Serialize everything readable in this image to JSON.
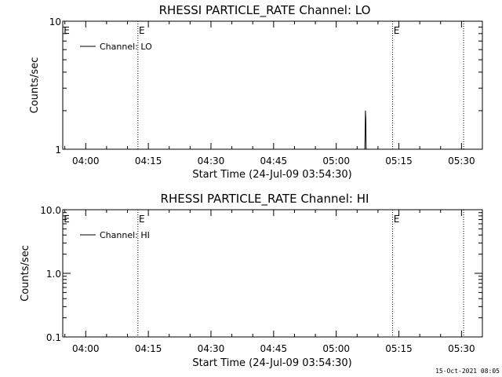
{
  "footer_date": "15-Oct-2021 08:05",
  "chart_data": [
    {
      "type": "line",
      "title": "RHESSI PARTICLE_RATE Channel: LO",
      "xlabel": "Start Time (24-Jul-09 03:54:30)",
      "ylabel": "Counts/sec",
      "yscale": "log",
      "ylim": [
        1,
        10
      ],
      "y_tick_labels": [
        "1",
        "10"
      ],
      "x_tick_labels": [
        "04:00",
        "04:15",
        "04:30",
        "04:45",
        "05:00",
        "05:15",
        "05:30"
      ],
      "xlim": [
        "03:54:30",
        "05:35:00"
      ],
      "grid": false,
      "legend": {
        "position": "top-left",
        "entries": [
          "Channel: LO"
        ]
      },
      "event_markers": [
        {
          "time": "04:12:30",
          "label": "E"
        },
        {
          "time": "05:13:30",
          "label": "E"
        },
        {
          "time": "05:30:30",
          "label": ""
        }
      ],
      "series": [
        {
          "name": "Channel: LO",
          "x": [
            "05:06:50",
            "05:06:55",
            "05:07:00",
            "05:07:05",
            "05:07:10",
            "05:07:15"
          ],
          "values": [
            1.0,
            1.35,
            2.0,
            1.7,
            1.0,
            1.0
          ]
        }
      ]
    },
    {
      "type": "line",
      "title": "RHESSI PARTICLE_RATE Channel: HI",
      "xlabel": "Start Time (24-Jul-09 03:54:30)",
      "ylabel": "Counts/sec",
      "yscale": "log",
      "ylim": [
        0.1,
        10
      ],
      "y_tick_labels": [
        "0.1",
        "1.0",
        "10.0"
      ],
      "x_tick_labels": [
        "04:00",
        "04:15",
        "04:30",
        "04:45",
        "05:00",
        "05:15",
        "05:30"
      ],
      "xlim": [
        "03:54:30",
        "05:35:00"
      ],
      "grid": false,
      "legend": {
        "position": "top-left",
        "entries": [
          "Channel: HI"
        ]
      },
      "event_markers": [
        {
          "time": "04:12:30",
          "label": "E"
        },
        {
          "time": "05:13:30",
          "label": "E"
        },
        {
          "time": "05:30:30",
          "label": ""
        }
      ],
      "series": [
        {
          "name": "Channel: HI",
          "x": [],
          "values": []
        }
      ]
    }
  ]
}
